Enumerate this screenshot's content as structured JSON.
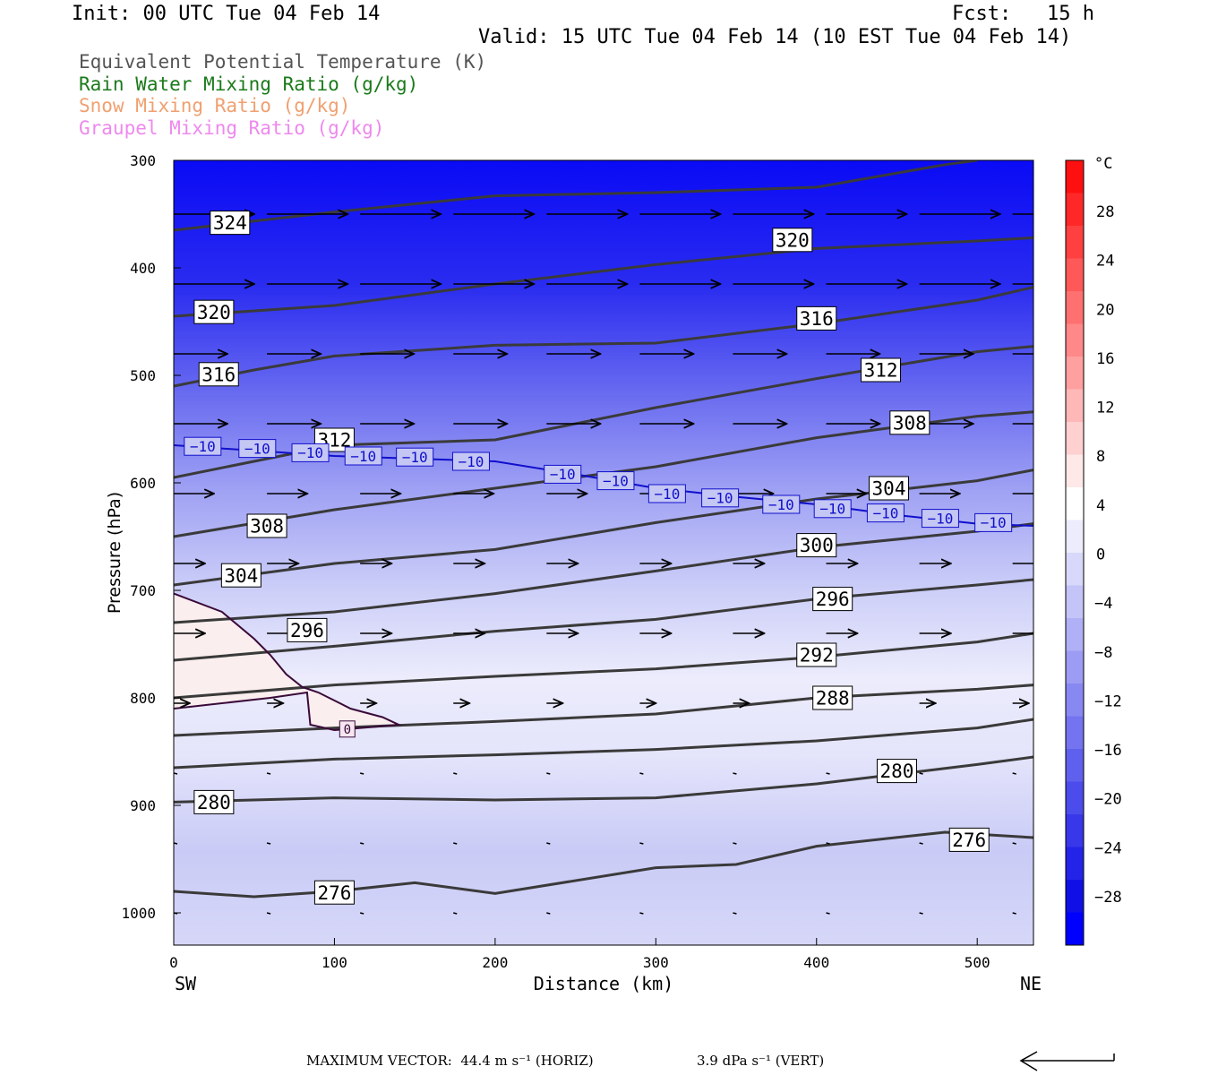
{
  "header": {
    "init": "Init: 00 UTC Tue 04 Feb 14",
    "fcst": "Fcst:   15 h",
    "valid": "Valid: 15 UTC Tue 04 Feb 14 (10 EST Tue 04 Feb 14)"
  },
  "legend": [
    {
      "label": "Equivalent Potential Temperature (K)",
      "color": "#555555"
    },
    {
      "label": "Rain Water Mixing Ratio (g/kg)",
      "color": "#1a7a1a"
    },
    {
      "label": "Snow Mixing Ratio (g/kg)",
      "color": "#f0a070"
    },
    {
      "label": "Graupel Mixing Ratio (g/kg)",
      "color": "#ee88ee"
    }
  ],
  "chart_data": {
    "type": "cross-section",
    "xlabel": "Distance (km)",
    "ylabel": "Pressure (hPa)",
    "xlim": [
      0,
      535
    ],
    "ylim": [
      1030,
      300
    ],
    "x_ticks": [
      0,
      100,
      200,
      300,
      400,
      500
    ],
    "y_ticks": [
      300,
      400,
      500,
      600,
      700,
      800,
      900,
      1000
    ],
    "left_end_label": "SW",
    "right_end_label": "NE",
    "colorbar": {
      "unit": "°C",
      "labels": [
        28,
        24,
        20,
        16,
        12,
        8,
        4,
        0,
        -4,
        -8,
        -12,
        -16,
        -20,
        -24,
        -28
      ]
    },
    "theta_e_contours": [
      {
        "level": 324,
        "points": [
          [
            0,
            365
          ],
          [
            100,
            348
          ],
          [
            200,
            333
          ],
          [
            300,
            330
          ],
          [
            400,
            325
          ],
          [
            480,
            304
          ],
          [
            500,
            300
          ]
        ],
        "label_at": [
          [
            35,
            358
          ]
        ]
      },
      {
        "level": 320,
        "points": [
          [
            0,
            445
          ],
          [
            100,
            435
          ],
          [
            200,
            415
          ],
          [
            300,
            397
          ],
          [
            400,
            382
          ],
          [
            500,
            375
          ],
          [
            535,
            372
          ]
        ],
        "label_at": [
          [
            25,
            441
          ],
          [
            385,
            374
          ]
        ]
      },
      {
        "level": 316,
        "points": [
          [
            0,
            510
          ],
          [
            50,
            495
          ],
          [
            100,
            482
          ],
          [
            200,
            472
          ],
          [
            300,
            470
          ],
          [
            400,
            452
          ],
          [
            500,
            430
          ],
          [
            535,
            418
          ]
        ],
        "label_at": [
          [
            28,
            499
          ],
          [
            400,
            447
          ]
        ]
      },
      {
        "level": 312,
        "points": [
          [
            0,
            595
          ],
          [
            100,
            565
          ],
          [
            200,
            560
          ],
          [
            300,
            530
          ],
          [
            400,
            503
          ],
          [
            500,
            478
          ],
          [
            535,
            473
          ]
        ],
        "label_at": [
          [
            100,
            560
          ],
          [
            440,
            495
          ]
        ]
      },
      {
        "level": 308,
        "points": [
          [
            0,
            650
          ],
          [
            100,
            625
          ],
          [
            200,
            605
          ],
          [
            300,
            585
          ],
          [
            400,
            558
          ],
          [
            500,
            538
          ],
          [
            535,
            534
          ]
        ],
        "label_at": [
          [
            58,
            640
          ],
          [
            458,
            544
          ]
        ]
      },
      {
        "level": 304,
        "points": [
          [
            0,
            695
          ],
          [
            100,
            675
          ],
          [
            200,
            662
          ],
          [
            300,
            637
          ],
          [
            400,
            615
          ],
          [
            500,
            598
          ],
          [
            535,
            588
          ]
        ],
        "label_at": [
          [
            42,
            686
          ],
          [
            445,
            605
          ]
        ]
      },
      {
        "level": 300,
        "points": [
          [
            0,
            730
          ],
          [
            100,
            720
          ],
          [
            200,
            703
          ],
          [
            300,
            682
          ],
          [
            400,
            660
          ],
          [
            500,
            645
          ],
          [
            535,
            638
          ]
        ],
        "label_at": [
          [
            400,
            658
          ]
        ]
      },
      {
        "level": 296,
        "points": [
          [
            0,
            765
          ],
          [
            100,
            752
          ],
          [
            200,
            738
          ],
          [
            300,
            727
          ],
          [
            400,
            708
          ],
          [
            500,
            695
          ],
          [
            535,
            690
          ]
        ],
        "label_at": [
          [
            83,
            737
          ],
          [
            410,
            708
          ]
        ]
      },
      {
        "level": 292,
        "points": [
          [
            0,
            800
          ],
          [
            100,
            788
          ],
          [
            200,
            780
          ],
          [
            300,
            773
          ],
          [
            400,
            762
          ],
          [
            500,
            748
          ],
          [
            535,
            740
          ]
        ],
        "label_at": [
          [
            400,
            760
          ]
        ]
      },
      {
        "level": 288,
        "points": [
          [
            0,
            835
          ],
          [
            100,
            828
          ],
          [
            200,
            822
          ],
          [
            300,
            815
          ],
          [
            400,
            800
          ],
          [
            500,
            792
          ],
          [
            535,
            788
          ]
        ],
        "label_at": [
          [
            410,
            800
          ]
        ]
      },
      {
        "level": 284,
        "points": [
          [
            0,
            865
          ],
          [
            100,
            857
          ],
          [
            200,
            853
          ],
          [
            300,
            848
          ],
          [
            400,
            840
          ],
          [
            500,
            828
          ],
          [
            535,
            820
          ]
        ],
        "label_at": []
      },
      {
        "level": 280,
        "points": [
          [
            0,
            897
          ],
          [
            100,
            893
          ],
          [
            200,
            895
          ],
          [
            300,
            893
          ],
          [
            400,
            880
          ],
          [
            500,
            862
          ],
          [
            535,
            855
          ]
        ],
        "label_at": [
          [
            25,
            897
          ],
          [
            450,
            868
          ]
        ]
      },
      {
        "level": 276,
        "points": [
          [
            0,
            980
          ],
          [
            50,
            985
          ],
          [
            100,
            980
          ],
          [
            150,
            972
          ],
          [
            200,
            982
          ],
          [
            300,
            958
          ],
          [
            350,
            955
          ],
          [
            400,
            938
          ],
          [
            480,
            925
          ],
          [
            535,
            930
          ]
        ],
        "label_at": [
          [
            100,
            981
          ],
          [
            495,
            932
          ]
        ]
      }
    ],
    "temperature_contours": [
      {
        "level": -10,
        "points": [
          [
            0,
            565
          ],
          [
            100,
            575
          ],
          [
            200,
            580
          ],
          [
            250,
            592
          ],
          [
            300,
            605
          ],
          [
            350,
            613
          ],
          [
            400,
            620
          ],
          [
            450,
            630
          ],
          [
            500,
            638
          ],
          [
            535,
            640
          ]
        ],
        "label_at": [
          [
            18,
            566
          ],
          [
            52,
            568
          ],
          [
            85,
            572
          ],
          [
            118,
            575
          ],
          [
            150,
            576
          ],
          [
            185,
            580
          ],
          [
            242,
            592
          ],
          [
            275,
            598
          ],
          [
            307,
            610
          ],
          [
            340,
            614
          ],
          [
            378,
            620
          ],
          [
            410,
            624
          ],
          [
            443,
            628
          ],
          [
            477,
            633
          ],
          [
            510,
            637
          ]
        ]
      },
      {
        "level": 0,
        "points": [
          [
            0,
            703
          ],
          [
            30,
            720
          ],
          [
            50,
            745
          ],
          [
            60,
            760
          ],
          [
            70,
            778
          ],
          [
            80,
            790
          ],
          [
            90,
            795
          ],
          [
            110,
            810
          ],
          [
            130,
            818
          ],
          [
            140,
            825
          ],
          [
            125,
            827
          ],
          [
            100,
            830
          ],
          [
            85,
            825
          ],
          [
            83,
            795
          ],
          [
            60,
            800
          ],
          [
            30,
            805
          ],
          [
            0,
            810
          ]
        ],
        "label_at": [
          [
            108,
            829
          ]
        ]
      }
    ]
  },
  "footer": {
    "max_vector": "MAXIMUM VECTOR:  44.4 m s⁻¹ (HORIZ)",
    "vert": "3.9 dPa s⁻¹ (VERT)"
  }
}
